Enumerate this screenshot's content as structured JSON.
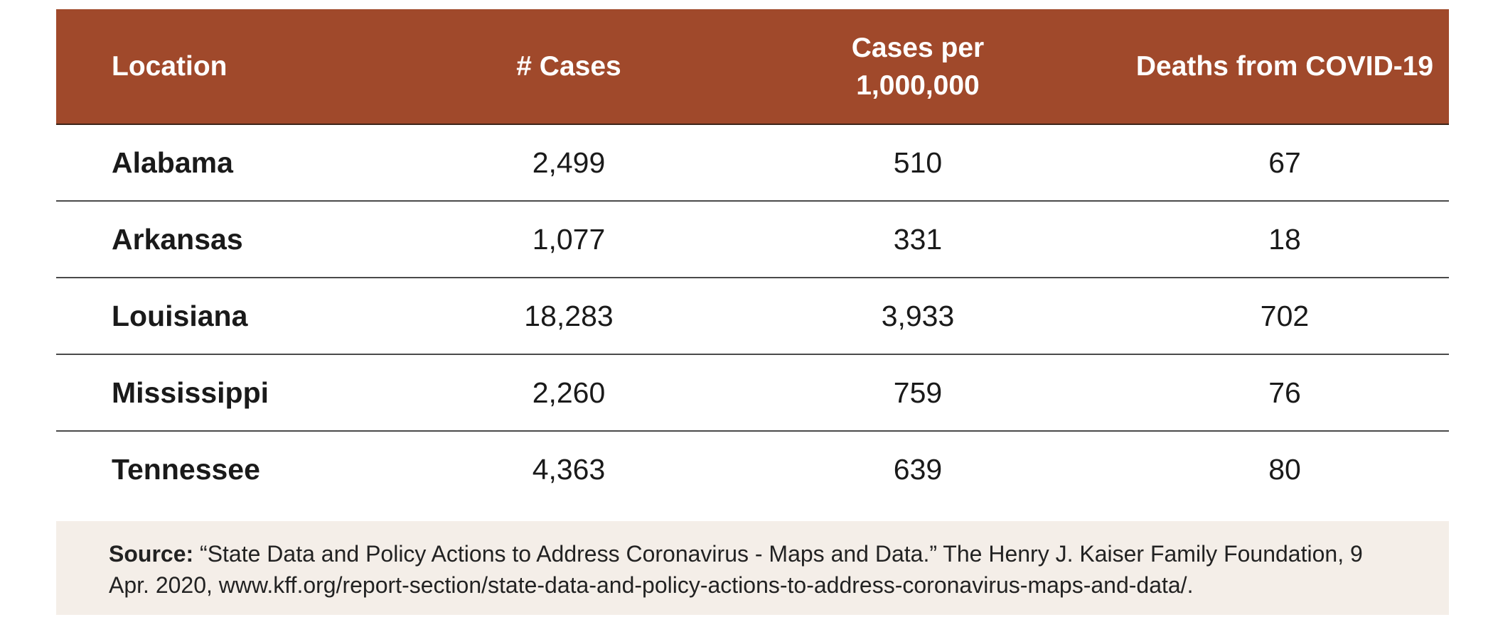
{
  "chart_data": {
    "type": "table",
    "columns": [
      "Location",
      "# Cases",
      "Cases per 1,000,000",
      "Deaths from COVID-19"
    ],
    "rows": [
      [
        "Alabama",
        "2,499",
        "510",
        "67"
      ],
      [
        "Arkansas",
        "1,077",
        "331",
        "18"
      ],
      [
        "Louisiana",
        "18,283",
        "3,933",
        "702"
      ],
      [
        "Mississippi",
        "2,260",
        "759",
        "76"
      ],
      [
        "Tennessee",
        "4,363",
        "639",
        "80"
      ]
    ],
    "values": {
      "cases": [
        2499,
        1077,
        18283,
        2260,
        4363
      ],
      "cases_per_million": [
        510,
        331,
        3933,
        759,
        639
      ],
      "deaths": [
        67,
        18,
        702,
        76,
        80
      ]
    }
  },
  "header": {
    "location": "Location",
    "cases": "# Cases",
    "per_million_line1": "Cases per",
    "per_million_line2": "1,000,000",
    "deaths": "Deaths from COVID-19"
  },
  "source": {
    "label": "Source:",
    "text": " “State Data and Policy Actions to Address Coronavirus - Maps and Data.” The Henry J. Kaiser Family Foundation, 9 Apr. 2020, www.kff.org/report-section/state-data-and-policy-actions-to-address-coronavirus-maps-and-data/."
  },
  "colors": {
    "header_bg": "#a0492b",
    "header_text": "#ffffff",
    "source_bg": "#f4eee8",
    "row_divider": "#4a4a4a"
  }
}
